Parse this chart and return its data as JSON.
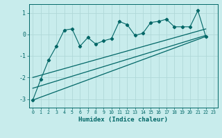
{
  "xlabel": "Humidex (Indice chaleur)",
  "ylabel": "",
  "background_color": "#c8ecec",
  "grid_color": "#b0d8d8",
  "line_color": "#006666",
  "xlim": [
    -0.5,
    23.5
  ],
  "ylim": [
    -3.4,
    1.4
  ],
  "yticks": [
    -3,
    -2,
    -1,
    0,
    1
  ],
  "xticks": [
    0,
    1,
    2,
    3,
    4,
    5,
    6,
    7,
    8,
    9,
    10,
    11,
    12,
    13,
    14,
    15,
    16,
    17,
    18,
    19,
    20,
    21,
    22,
    23
  ],
  "scatter_x": [
    0,
    1,
    2,
    3,
    4,
    5,
    6,
    7,
    8,
    9,
    10,
    11,
    12,
    13,
    14,
    15,
    16,
    17,
    18,
    19,
    20,
    21,
    22
  ],
  "scatter_y": [
    -3.05,
    -2.1,
    -1.2,
    -0.55,
    0.2,
    0.25,
    -0.55,
    -0.15,
    -0.45,
    -0.3,
    -0.2,
    0.6,
    0.45,
    -0.05,
    0.05,
    0.55,
    0.6,
    0.7,
    0.35,
    0.35,
    0.35,
    1.1,
    -0.1
  ],
  "line1_x": [
    0,
    22
  ],
  "line1_y": [
    -3.05,
    -0.1
  ],
  "line2_x": [
    0,
    22
  ],
  "line2_y": [
    -2.5,
    -0.05
  ],
  "line3_x": [
    0,
    22
  ],
  "line3_y": [
    -2.0,
    0.25
  ],
  "xlabel_fontsize": 6.5,
  "ytick_fontsize": 6.0,
  "xtick_fontsize": 4.8
}
